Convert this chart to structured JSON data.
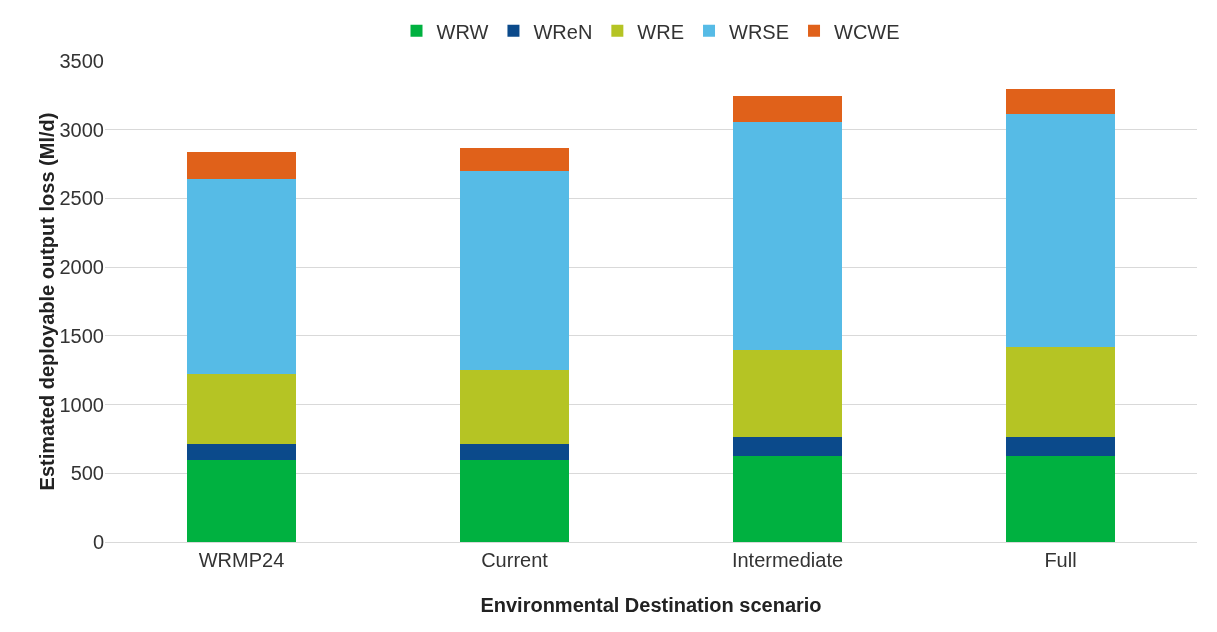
{
  "chart_data": {
    "type": "bar",
    "stacked": true,
    "xlabel": "Environmental Destination scenario",
    "ylabel": "Estimated deployable output loss (Ml/d)",
    "categories": [
      "WRMP24",
      "Current",
      "Intermediate",
      "Full"
    ],
    "series": [
      {
        "name": "WRW",
        "color": "#00b140",
        "values": [
          595,
          595,
          625,
          625
        ]
      },
      {
        "name": "WReN",
        "color": "#0b4a8b",
        "values": [
          115,
          120,
          140,
          140
        ]
      },
      {
        "name": "WRE",
        "color": "#b5c424",
        "values": [
          510,
          540,
          630,
          655
        ]
      },
      {
        "name": "WRSE",
        "color": "#56bbe6",
        "values": [
          1425,
          1445,
          1660,
          1695
        ]
      },
      {
        "name": "WCWE",
        "color": "#e0611a",
        "values": [
          195,
          165,
          190,
          180
        ]
      }
    ],
    "ylim": [
      0,
      3500
    ],
    "yticks": [
      0,
      500,
      1000,
      1500,
      2000,
      2500,
      3000,
      3500
    ],
    "grid": "y",
    "legend": "top"
  }
}
